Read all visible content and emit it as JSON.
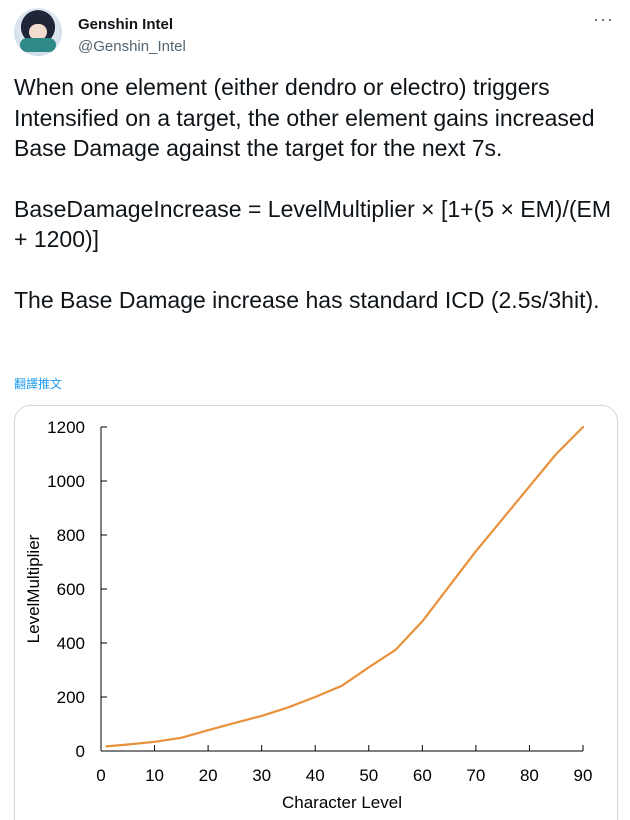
{
  "author": {
    "display_name": "Genshin Intel",
    "handle": "@Genshin_Intel",
    "avatar_icon": "avatar-image"
  },
  "more_label": "···",
  "tweet": {
    "paragraph1": "When one element (either dendro or electro) triggers Intensified on a target, the other element gains increased Base Damage against the target for the next 7s.",
    "paragraph2": "BaseDamageIncrease = LevelMultiplier × [1+(5 × EM)/(EM + 1200)]",
    "paragraph3": "The Base Damage increase has standard ICD (2.5s/3hit).",
    "translate_label": "翻譯推文"
  },
  "chart_data": {
    "type": "line",
    "xlabel": "Character Level",
    "ylabel": "LevelMultiplier",
    "xlim": [
      0,
      90
    ],
    "ylim": [
      0,
      1200
    ],
    "x_ticks": [
      0,
      10,
      20,
      30,
      40,
      50,
      60,
      70,
      80,
      90
    ],
    "y_ticks": [
      0,
      200,
      400,
      600,
      800,
      1000,
      1200
    ],
    "line_color": "#e8913a",
    "series": [
      {
        "x": [
          1,
          5,
          10,
          15,
          20,
          25,
          30,
          35,
          40,
          45,
          50,
          55,
          60,
          65,
          70,
          75,
          80,
          85,
          90
        ],
        "y": [
          17,
          24,
          34,
          49,
          77,
          104,
          130,
          162,
          200,
          242,
          310,
          375,
          480,
          610,
          740,
          860,
          980,
          1100,
          1200
        ]
      }
    ]
  }
}
